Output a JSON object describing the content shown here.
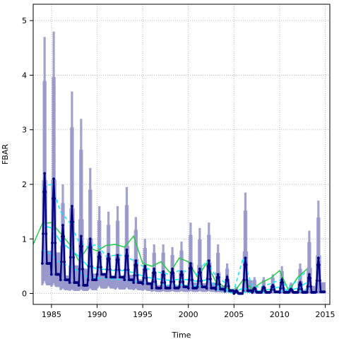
{
  "chart_data": {
    "type": "line",
    "title": "",
    "xlabel": "Time",
    "ylabel": "FBAR",
    "xlim": [
      1983,
      2015.5
    ],
    "ylim": [
      -0.2,
      5.3
    ],
    "xticks": [
      1985,
      1990,
      1995,
      2000,
      2005,
      2010,
      2015
    ],
    "yticks": [
      0,
      1,
      2,
      3,
      4,
      5
    ],
    "grid": true,
    "legend": "none",
    "colors": {
      "band": "#9999cc",
      "main": "#00007f",
      "green": "#22cc44",
      "cyan": "#00eeff",
      "grid": "#bbbbbb"
    },
    "annual_peaks": [
      {
        "year": 1984,
        "peak": 2.2,
        "low": 0.55,
        "band_lo": 0.25,
        "band_hi": 4.7
      },
      {
        "year": 1985,
        "peak": 2.1,
        "low": 0.35,
        "band_lo": 0.2,
        "band_hi": 4.8
      },
      {
        "year": 1986,
        "peak": 1.25,
        "low": 0.25,
        "band_lo": 0.1,
        "band_hi": 2.0
      },
      {
        "year": 1987,
        "peak": 1.6,
        "low": 0.2,
        "band_lo": 0.08,
        "band_hi": 3.7
      },
      {
        "year": 1988,
        "peak": 1.05,
        "low": 0.15,
        "band_lo": 0.08,
        "band_hi": 3.2
      },
      {
        "year": 1989,
        "peak": 1.0,
        "low": 0.25,
        "band_lo": 0.1,
        "band_hi": 2.3
      },
      {
        "year": 1990,
        "peak": 0.75,
        "low": 0.35,
        "band_lo": 0.15,
        "band_hi": 1.6
      },
      {
        "year": 1991,
        "peak": 0.72,
        "low": 0.3,
        "band_lo": 0.15,
        "band_hi": 1.5
      },
      {
        "year": 1992,
        "peak": 0.7,
        "low": 0.3,
        "band_lo": 0.12,
        "band_hi": 1.6
      },
      {
        "year": 1993,
        "peak": 0.8,
        "low": 0.25,
        "band_lo": 0.12,
        "band_hi": 1.95
      },
      {
        "year": 1994,
        "peak": 0.6,
        "low": 0.2,
        "band_lo": 0.1,
        "band_hi": 1.4
      },
      {
        "year": 1995,
        "peak": 0.5,
        "low": 0.18,
        "band_lo": 0.08,
        "band_hi": 1.0
      },
      {
        "year": 1996,
        "peak": 0.45,
        "low": 0.1,
        "band_lo": 0.05,
        "band_hi": 0.9
      },
      {
        "year": 1997,
        "peak": 0.4,
        "low": 0.1,
        "band_lo": 0.05,
        "band_hi": 0.9
      },
      {
        "year": 1998,
        "peak": 0.45,
        "low": 0.1,
        "band_lo": 0.05,
        "band_hi": 0.85
      },
      {
        "year": 1999,
        "peak": 0.4,
        "low": 0.12,
        "band_lo": 0.05,
        "band_hi": 0.95
      },
      {
        "year": 2000,
        "peak": 0.55,
        "low": 0.1,
        "band_lo": 0.05,
        "band_hi": 1.3
      },
      {
        "year": 2001,
        "peak": 0.45,
        "low": 0.12,
        "band_lo": 0.05,
        "band_hi": 1.2
      },
      {
        "year": 2002,
        "peak": 0.6,
        "low": 0.1,
        "band_lo": 0.05,
        "band_hi": 1.3
      },
      {
        "year": 2003,
        "peak": 0.35,
        "low": 0.08,
        "band_lo": 0.03,
        "band_hi": 0.9
      },
      {
        "year": 2004,
        "peak": 0.3,
        "low": 0.05,
        "band_lo": 0.02,
        "band_hi": 0.55
      },
      {
        "year": 2005,
        "peak": 0.05,
        "low": 0.0,
        "band_lo": 0.0,
        "band_hi": 0.12
      },
      {
        "year": 2006,
        "peak": 0.65,
        "low": 0.05,
        "band_lo": 0.02,
        "band_hi": 1.85
      },
      {
        "year": 2007,
        "peak": 0.1,
        "low": 0.02,
        "band_lo": 0.0,
        "band_hi": 0.3
      },
      {
        "year": 2008,
        "peak": 0.12,
        "low": 0.02,
        "band_lo": 0.0,
        "band_hi": 0.3
      },
      {
        "year": 2009,
        "peak": 0.15,
        "low": 0.03,
        "band_lo": 0.0,
        "band_hi": 0.35
      },
      {
        "year": 2010,
        "peak": 0.25,
        "low": 0.02,
        "band_lo": 0.0,
        "band_hi": 0.5
      },
      {
        "year": 2011,
        "peak": 0.08,
        "low": 0.02,
        "band_lo": 0.0,
        "band_hi": 0.2
      },
      {
        "year": 2012,
        "peak": 0.2,
        "low": 0.02,
        "band_lo": 0.0,
        "band_hi": 0.55
      },
      {
        "year": 2013,
        "peak": 0.35,
        "low": 0.02,
        "band_lo": 0.0,
        "band_hi": 1.15
      },
      {
        "year": 2014,
        "peak": 0.65,
        "low": 0.03,
        "band_lo": 0.0,
        "band_hi": 1.7
      }
    ],
    "series": [
      {
        "style": "solid",
        "color": "#22cc44",
        "x": [
          1983,
          1984,
          1985,
          1986,
          1987,
          1988,
          1989,
          1990,
          1991,
          1992,
          1993,
          1994,
          1995,
          1996,
          1997,
          1998,
          1999,
          2000,
          2001,
          2002,
          2003,
          2004,
          2005,
          2006,
          2007,
          2008,
          2009,
          2010,
          2011,
          2012,
          2013
        ],
        "values": [
          0.9,
          1.28,
          1.3,
          1.1,
          0.9,
          0.6,
          0.85,
          0.78,
          0.88,
          0.9,
          0.85,
          1.05,
          0.55,
          0.5,
          0.58,
          0.38,
          0.65,
          0.58,
          0.3,
          0.55,
          0.22,
          0.12,
          0.02,
          0.25,
          0.08,
          0.2,
          0.28,
          0.42,
          0.05,
          0.3,
          0.45
        ]
      },
      {
        "style": "solid",
        "color": "#00eeff",
        "x": [
          1984,
          1985,
          1986,
          1987,
          1988,
          1989,
          1990,
          1991,
          1992,
          1993,
          1994,
          1995,
          1996,
          1997,
          1998,
          1999,
          2000,
          2001,
          2002,
          2003,
          2004,
          2005,
          2006,
          2007,
          2008,
          2009,
          2010,
          2011,
          2012,
          2013
        ],
        "values": [
          1.25,
          1.2,
          0.95,
          0.82,
          0.68,
          0.5,
          0.45,
          0.44,
          0.42,
          0.42,
          0.38,
          0.32,
          0.28,
          0.26,
          0.24,
          0.26,
          0.25,
          0.22,
          0.25,
          0.15,
          0.08,
          0.02,
          0.1,
          0.05,
          0.05,
          0.08,
          0.12,
          0.05,
          0.1,
          0.2
        ]
      },
      {
        "style": "dashed",
        "color": "#00eeff",
        "x": [
          1984,
          1985,
          1986,
          1987,
          1988,
          1989,
          1990,
          1991,
          1992,
          1993,
          1994,
          1995,
          1996,
          1997,
          1998,
          1999,
          2000,
          2001,
          2002,
          2003,
          2004,
          2005,
          2006,
          2007,
          2008,
          2009,
          2010,
          2011,
          2012,
          2013
        ],
        "values": [
          1.95,
          2.0,
          1.5,
          1.3,
          0.95,
          0.85,
          0.9,
          0.68,
          0.7,
          0.7,
          0.6,
          0.5,
          0.42,
          0.38,
          0.35,
          0.42,
          0.4,
          0.35,
          0.6,
          0.32,
          0.2,
          0.05,
          0.65,
          0.12,
          0.12,
          0.18,
          0.25,
          0.1,
          0.25,
          0.42
        ]
      },
      {
        "style": "dashed",
        "color": "#00eeff",
        "x": [
          1984,
          1985,
          1986,
          1987,
          1988,
          1989,
          1990,
          1991,
          1992,
          1993,
          1994,
          1995,
          1996,
          1997,
          1998,
          1999,
          2000,
          2001,
          2002,
          2003,
          2004,
          2005,
          2006,
          2007,
          2008,
          2009,
          2010,
          2011,
          2012,
          2013
        ],
        "values": [
          0.8,
          0.72,
          0.55,
          0.5,
          0.4,
          0.3,
          0.28,
          0.28,
          0.26,
          0.25,
          0.22,
          0.2,
          0.18,
          0.17,
          0.15,
          0.16,
          0.15,
          0.13,
          0.14,
          0.08,
          0.04,
          0.0,
          0.02,
          0.02,
          0.02,
          0.03,
          0.05,
          0.02,
          0.04,
          0.08
        ]
      }
    ]
  }
}
